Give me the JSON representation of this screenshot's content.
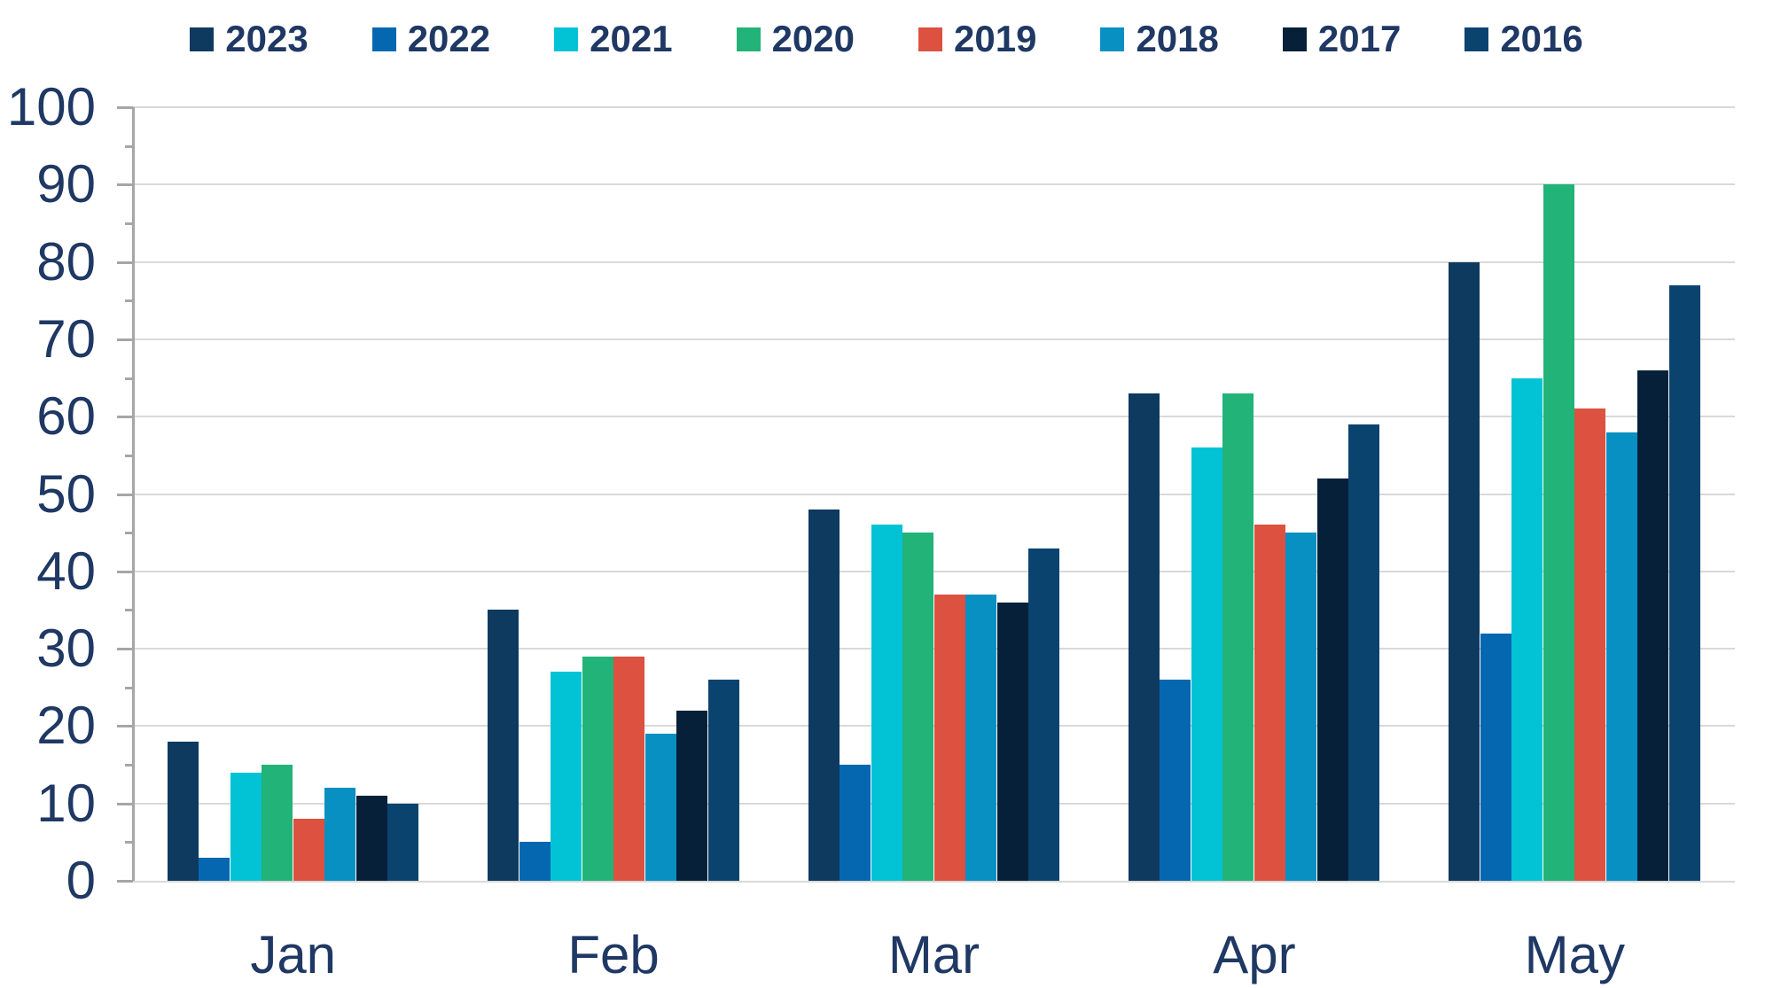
{
  "chart_data": {
    "type": "bar",
    "title": "",
    "xlabel": "",
    "ylabel": "",
    "categories": [
      "Jan",
      "Feb",
      "Mar",
      "Apr",
      "May"
    ],
    "series": [
      {
        "name": "2023",
        "color": "#0e3a5f",
        "values": [
          18,
          35,
          48,
          63,
          80
        ]
      },
      {
        "name": "2022",
        "color": "#0667b1",
        "values": [
          3,
          5,
          15,
          26,
          32
        ]
      },
      {
        "name": "2021",
        "color": "#02c3d5",
        "values": [
          14,
          27,
          46,
          56,
          65
        ]
      },
      {
        "name": "2020",
        "color": "#21b377",
        "values": [
          15,
          29,
          45,
          63,
          90
        ]
      },
      {
        "name": "2019",
        "color": "#dc5140",
        "values": [
          8,
          29,
          37,
          46,
          61
        ]
      },
      {
        "name": "2018",
        "color": "#0990c2",
        "values": [
          12,
          19,
          37,
          45,
          58
        ]
      },
      {
        "name": "2017",
        "color": "#06203a",
        "values": [
          11,
          22,
          36,
          52,
          66
        ]
      },
      {
        "name": "2016",
        "color": "#0b436f",
        "values": [
          10,
          26,
          43,
          59,
          77
        ]
      }
    ],
    "ylim": [
      0,
      100
    ],
    "yticks": [
      0,
      10,
      20,
      30,
      40,
      50,
      60,
      70,
      80,
      90,
      100
    ],
    "minor_tick_interval": 5,
    "grid": "horizontal",
    "legend_position": "top"
  },
  "colors": {
    "axis_text": "#1f3864",
    "legend_text": "#1f3864",
    "gridline": "#d9d9d9",
    "axis_line": "#a6a6a6",
    "background": "#ffffff"
  }
}
